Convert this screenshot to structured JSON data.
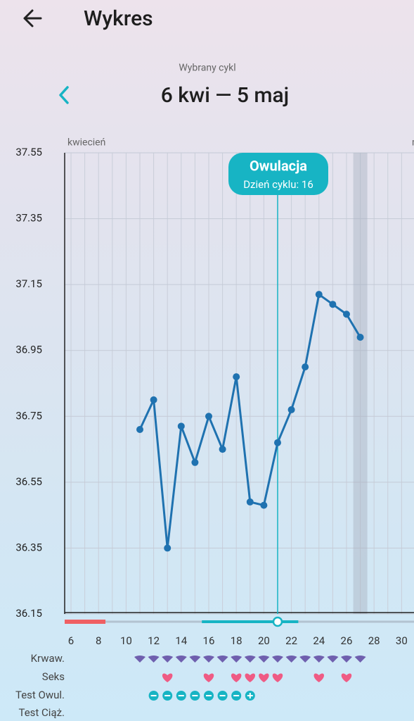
{
  "header": {
    "title": "Wykres"
  },
  "cycle": {
    "label": "Wybrany cykl",
    "range": "6 kwi — 5 maj"
  },
  "chart_data": {
    "type": "line",
    "month_labels": [
      "kwiecień",
      "maj"
    ],
    "x": [
      11,
      12,
      13,
      14,
      15,
      16,
      17,
      18,
      19,
      20,
      21,
      22,
      23,
      24,
      25,
      26,
      27
    ],
    "values": [
      36.71,
      36.8,
      36.35,
      36.72,
      36.61,
      36.75,
      36.65,
      36.87,
      36.49,
      36.48,
      36.67,
      36.77,
      36.9,
      37.12,
      37.09,
      37.06,
      36.99
    ],
    "color": "#1f72b0",
    "xlim": [
      5.54,
      30.9
    ],
    "ylim": [
      36.15,
      37.55
    ],
    "xticks": [
      6,
      8,
      10,
      12,
      14,
      16,
      18,
      20,
      22,
      24,
      26,
      28,
      30
    ],
    "xgrid": [
      6,
      7,
      8,
      9,
      10,
      11,
      12,
      13,
      14,
      15,
      16,
      17,
      18,
      19,
      20,
      21,
      22,
      23,
      24,
      25,
      26,
      27,
      28,
      29,
      30
    ],
    "yticks": [
      36.15,
      36.35,
      36.55,
      36.75,
      36.95,
      37.15,
      37.35,
      37.55
    ],
    "grid": true,
    "ovulation": {
      "day": 21,
      "label": "Owulacja",
      "sublabel": "Dzień cyklu: 16",
      "color": "#17b4c4"
    },
    "highlight_day": 27,
    "period": {
      "range": [
        5.54,
        8.5
      ],
      "color": "#ef5f63"
    },
    "fertile": {
      "range": [
        15.5,
        22.5
      ],
      "color": "#17b4c4"
    },
    "rows": [
      {
        "label": "Krwaw.",
        "kind": "drop",
        "color": "#6f5fae",
        "days": [
          11,
          12,
          13,
          14,
          15,
          16,
          17,
          18,
          19,
          20,
          21,
          22,
          23,
          24,
          25,
          26,
          27
        ]
      },
      {
        "label": "Seks",
        "kind": "heart",
        "color": "#ef5b84",
        "days": [
          13,
          16,
          18,
          19,
          20,
          21,
          24,
          26
        ]
      },
      {
        "label": "Test Owul.",
        "kind": "minus",
        "color": "#17b4c4",
        "days": [
          12,
          13,
          14,
          15,
          16,
          17,
          18
        ]
      },
      {
        "label": "Test Ciąż.",
        "kind": "none",
        "color": "#17b4c4",
        "days": []
      }
    ],
    "ovulation_test_positive": {
      "kind": "plus",
      "days": [
        19
      ]
    }
  }
}
